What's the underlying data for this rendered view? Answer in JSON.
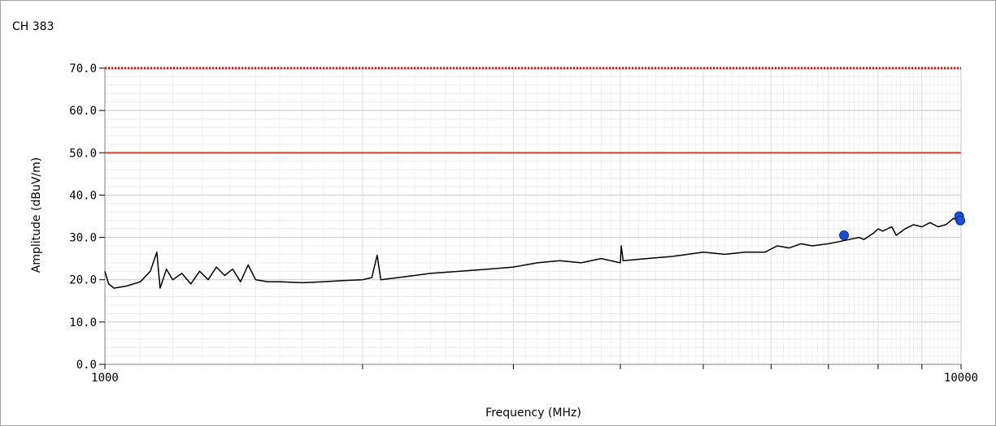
{
  "window": {
    "title": "CH 383"
  },
  "chart_data": {
    "type": "line",
    "title": "CH 383",
    "xlabel": "Frequency (MHz)",
    "ylabel": "Amplitude (dBuV/m)",
    "xscale": "log",
    "xlim": [
      1000,
      10000
    ],
    "ylim": [
      0,
      70
    ],
    "x_tick_labels": [
      "1000",
      "10000"
    ],
    "y_tick_labels": [
      "0.0",
      "10.0",
      "20.0",
      "30.0",
      "40.0",
      "50.0",
      "60.0",
      "70.0"
    ],
    "y_ticks": [
      0,
      10,
      20,
      30,
      40,
      50,
      60,
      70
    ],
    "grid": true,
    "limit_lines": [
      {
        "value": 70,
        "style": "dotted",
        "color": "#ff0000"
      },
      {
        "value": 50,
        "style": "solid",
        "color": "#e8402a"
      }
    ],
    "series": [
      {
        "color": "#000000",
        "points": [
          [
            1000,
            22.0
          ],
          [
            1010,
            19.0
          ],
          [
            1025,
            18.0
          ],
          [
            1060,
            18.5
          ],
          [
            1100,
            19.5
          ],
          [
            1130,
            22.0
          ],
          [
            1150,
            26.5
          ],
          [
            1160,
            18.0
          ],
          [
            1180,
            22.5
          ],
          [
            1200,
            20.0
          ],
          [
            1230,
            21.5
          ],
          [
            1260,
            19.0
          ],
          [
            1290,
            22.0
          ],
          [
            1320,
            20.0
          ],
          [
            1350,
            23.0
          ],
          [
            1380,
            21.0
          ],
          [
            1410,
            22.5
          ],
          [
            1440,
            19.5
          ],
          [
            1470,
            23.5
          ],
          [
            1500,
            20.0
          ],
          [
            1550,
            19.5
          ],
          [
            1600,
            19.5
          ],
          [
            1700,
            19.3
          ],
          [
            1800,
            19.5
          ],
          [
            1900,
            19.8
          ],
          [
            2000,
            20.0
          ],
          [
            2050,
            20.5
          ],
          [
            2080,
            25.8
          ],
          [
            2100,
            20.0
          ],
          [
            2200,
            20.5
          ],
          [
            2400,
            21.5
          ],
          [
            2600,
            22.0
          ],
          [
            2800,
            22.5
          ],
          [
            3000,
            23.0
          ],
          [
            3200,
            24.0
          ],
          [
            3400,
            24.5
          ],
          [
            3600,
            24.0
          ],
          [
            3800,
            25.0
          ],
          [
            4000,
            24.0
          ],
          [
            4010,
            28.0
          ],
          [
            4030,
            24.5
          ],
          [
            4300,
            25.0
          ],
          [
            4600,
            25.5
          ],
          [
            4800,
            26.0
          ],
          [
            5000,
            26.5
          ],
          [
            5300,
            26.0
          ],
          [
            5600,
            26.5
          ],
          [
            5900,
            26.5
          ],
          [
            6100,
            28.0
          ],
          [
            6300,
            27.5
          ],
          [
            6500,
            28.5
          ],
          [
            6700,
            28.0
          ],
          [
            7000,
            28.5
          ],
          [
            7200,
            29.0
          ],
          [
            7400,
            29.5
          ],
          [
            7600,
            30.0
          ],
          [
            7700,
            29.5
          ],
          [
            7900,
            31.0
          ],
          [
            8000,
            32.0
          ],
          [
            8100,
            31.5
          ],
          [
            8300,
            32.5
          ],
          [
            8400,
            30.5
          ],
          [
            8600,
            32.0
          ],
          [
            8800,
            33.0
          ],
          [
            9000,
            32.5
          ],
          [
            9200,
            33.5
          ],
          [
            9400,
            32.5
          ],
          [
            9600,
            33.0
          ],
          [
            9800,
            34.5
          ],
          [
            10000,
            33.5
          ]
        ]
      }
    ],
    "markers": [
      {
        "x": 7300,
        "y": 30.5,
        "color": "#1a4fd6"
      },
      {
        "x": 9950,
        "y": 35.0,
        "color": "#1a4fd6"
      },
      {
        "x": 9980,
        "y": 34.0,
        "color": "#1a4fd6"
      }
    ]
  }
}
